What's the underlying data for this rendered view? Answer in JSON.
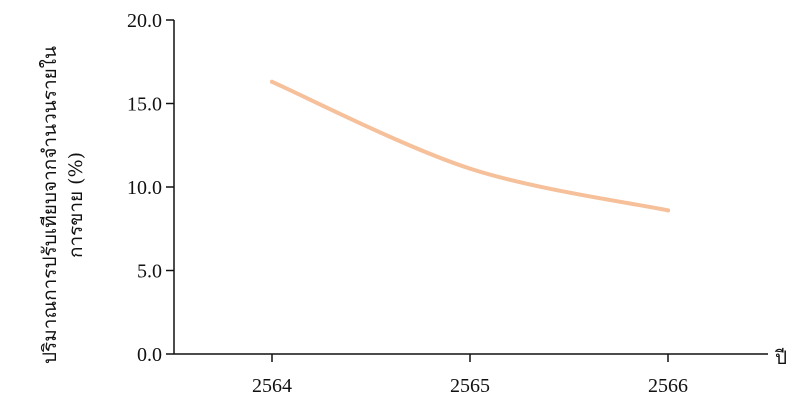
{
  "chart_data": {
    "type": "line",
    "x": [
      "2564",
      "2565",
      "2566"
    ],
    "series": [
      {
        "values": [
          16.3,
          11.1,
          8.6
        ],
        "color": "#f5c09a"
      }
    ],
    "ylim": [
      0,
      20
    ],
    "yticks": [
      "0.0",
      "5.0",
      "10.0",
      "15.0",
      "20.0"
    ],
    "ylabel_line1": "ปริมาณการปรับเทียบจากจำนวนรายใน",
    "ylabel_line2": "การขาย (%)",
    "xlabel": "ปี",
    "grid": false,
    "legend": "none"
  }
}
